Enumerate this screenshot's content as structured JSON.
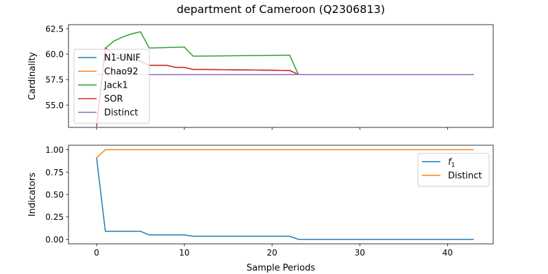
{
  "figure": {
    "title": "department of Cameroon (Q2306813)"
  },
  "chart_data": [
    {
      "type": "line",
      "ylabel": "Cardinality",
      "xlabel": "",
      "xlim": [
        -3.2,
        45.2
      ],
      "ylim": [
        52.8,
        62.9
      ],
      "xticks": [
        0,
        10,
        20,
        30,
        40
      ],
      "xtick_labels_visible": false,
      "yticks": [
        55.0,
        57.5,
        60.0,
        62.5
      ],
      "ytick_labels": [
        "55.0",
        "57.5",
        "60.0",
        "62.5"
      ],
      "legend_position": "upper-left",
      "grid": false,
      "series": [
        {
          "name": "N1-UNIF",
          "color": "#1f77b4",
          "x": [
            0,
            1,
            2,
            3,
            4,
            5,
            6,
            7,
            8,
            9,
            10,
            11,
            12,
            22,
            23,
            43
          ],
          "y": [
            52.9,
            60.6,
            60.0,
            59.8,
            59.5,
            59.3,
            58.9,
            58.9,
            58.9,
            58.7,
            58.7,
            58.5,
            58.5,
            58.4,
            58.0,
            58.0
          ]
        },
        {
          "name": "Chao92",
          "color": "#ff7f0e",
          "x": [
            0,
            1,
            2,
            3,
            4,
            5,
            6,
            7,
            8,
            9,
            10,
            11,
            12,
            22,
            23,
            43
          ],
          "y": [
            52.9,
            60.6,
            60.0,
            59.8,
            59.5,
            59.3,
            58.9,
            58.9,
            58.9,
            58.7,
            58.7,
            58.5,
            58.5,
            58.4,
            58.0,
            58.0
          ]
        },
        {
          "name": "Jack1",
          "color": "#2ca02c",
          "x": [
            0,
            1,
            2,
            3,
            4,
            5,
            6,
            10,
            11,
            22,
            23,
            43
          ],
          "y": [
            52.9,
            60.6,
            61.3,
            61.7,
            62.0,
            62.2,
            60.6,
            60.7,
            59.8,
            59.9,
            58.0,
            58.0
          ]
        },
        {
          "name": "SOR",
          "color": "#d62728",
          "x": [
            0,
            1,
            2,
            3,
            4,
            5,
            6,
            7,
            8,
            9,
            10,
            11,
            12,
            22,
            23,
            43
          ],
          "y": [
            52.9,
            60.6,
            60.0,
            59.8,
            59.5,
            59.3,
            58.9,
            58.9,
            58.9,
            58.7,
            58.7,
            58.5,
            58.5,
            58.4,
            58.0,
            58.0
          ]
        },
        {
          "name": "Distinct",
          "color": "#9467bd",
          "x": [
            0,
            43
          ],
          "y": [
            58.0,
            58.0
          ]
        }
      ]
    },
    {
      "type": "line",
      "ylabel": "Indicators",
      "xlabel": "Sample Periods",
      "xlim": [
        -3.2,
        45.2
      ],
      "ylim": [
        -0.05,
        1.05
      ],
      "xticks": [
        0,
        10,
        20,
        30,
        40
      ],
      "xtick_labels": [
        "0",
        "10",
        "20",
        "30",
        "40"
      ],
      "yticks": [
        0.0,
        0.25,
        0.5,
        0.75,
        1.0
      ],
      "ytick_labels": [
        "0.00",
        "0.25",
        "0.50",
        "0.75",
        "1.00"
      ],
      "legend_position": "upper-right",
      "grid": false,
      "series": [
        {
          "name": "f1",
          "color": "#1f77b4",
          "x": [
            0,
            1,
            5,
            6,
            10,
            11,
            22,
            23,
            43
          ],
          "y": [
            0.91,
            0.09,
            0.09,
            0.05,
            0.05,
            0.035,
            0.035,
            0.0,
            0.0
          ]
        },
        {
          "name": "Distinct",
          "color": "#ff7f0e",
          "x": [
            0,
            1,
            43
          ],
          "y": [
            0.91,
            1.0,
            1.0
          ]
        }
      ]
    }
  ]
}
